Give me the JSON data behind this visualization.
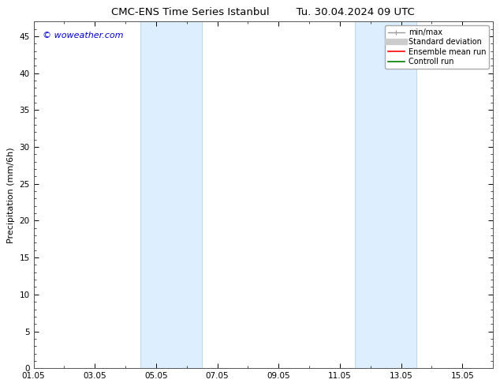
{
  "title_left": "CMC-ENS Time Series Istanbul",
  "title_right": "Tu. 30.04.2024 09 UTC",
  "ylabel": "Precipitation (mm/6h)",
  "watermark": "© woweather.com",
  "watermark_color": "#0000cc",
  "ylim": [
    0,
    47
  ],
  "yticks": [
    0,
    5,
    10,
    15,
    20,
    25,
    30,
    35,
    40,
    45
  ],
  "xtick_labels": [
    "01.05",
    "03.05",
    "05.05",
    "07.05",
    "09.05",
    "11.05",
    "13.05",
    "15.05"
  ],
  "xtick_positions": [
    0,
    2,
    4,
    6,
    8,
    10,
    12,
    14
  ],
  "x_min": 0,
  "x_max": 15,
  "shaded_bands": [
    {
      "x_start": 3.5,
      "x_end": 5.5
    },
    {
      "x_start": 10.5,
      "x_end": 12.5
    }
  ],
  "shaded_color": "#ddeeff",
  "shaded_edge_color": "#aaccdd",
  "background_color": "#ffffff",
  "plot_bg_color": "#ffffff",
  "legend_entries": [
    {
      "label": "min/max",
      "color": "#999999",
      "lw": 1.0
    },
    {
      "label": "Standard deviation",
      "color": "#cccccc",
      "lw": 6
    },
    {
      "label": "Ensemble mean run",
      "color": "#ff0000",
      "lw": 1.2
    },
    {
      "label": "Controll run",
      "color": "#008000",
      "lw": 1.2
    }
  ],
  "font_size_title": 9.5,
  "font_size_labels": 8,
  "font_size_ticks": 7.5,
  "font_size_legend": 7,
  "font_size_watermark": 8,
  "tick_direction": "in"
}
